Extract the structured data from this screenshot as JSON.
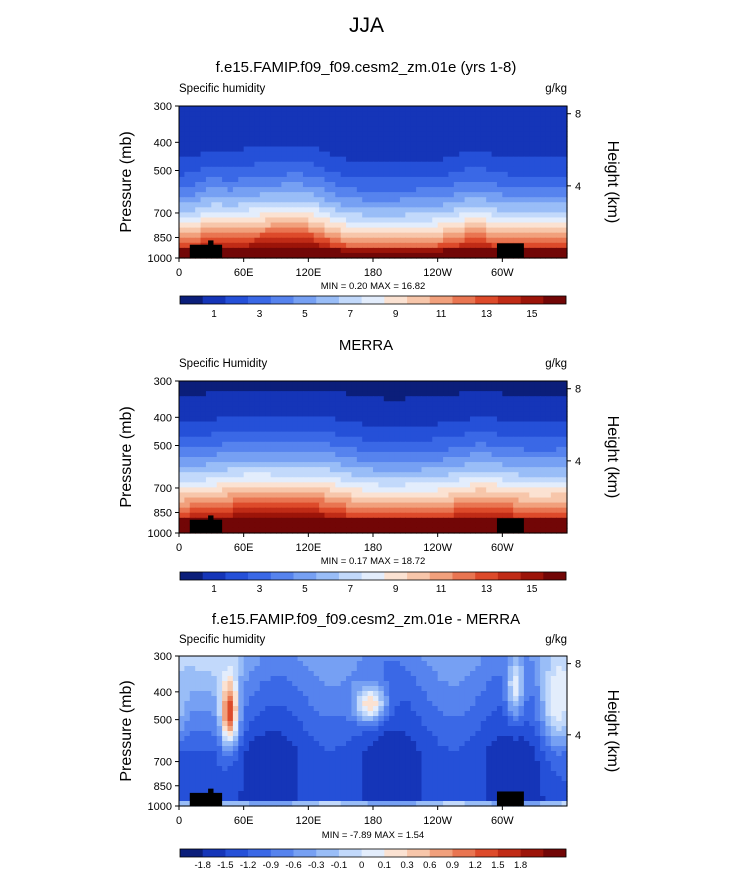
{
  "figure": {
    "title": "JJA"
  },
  "palettes": {
    "sequential": [
      "#0b1e7a",
      "#1535b8",
      "#2550d8",
      "#3a68e6",
      "#5683ee",
      "#76a0f3",
      "#99bdf7",
      "#c2d9fb",
      "#e3edfc",
      "#fbe2d2",
      "#f7c6aa",
      "#f1a07c",
      "#e97551",
      "#dd4a2a",
      "#c02b16",
      "#9c1409",
      "#720606"
    ],
    "diverging": [
      "#0b1e7a",
      "#1535b8",
      "#2550d8",
      "#3a68e6",
      "#5683ee",
      "#76a0f3",
      "#99bdf7",
      "#c2d9fb",
      "#e3edfc",
      "#fbe2d2",
      "#f7c6aa",
      "#f1a07c",
      "#e97551",
      "#dd4a2a",
      "#c02b16",
      "#9c1409",
      "#720606"
    ]
  },
  "chart_data": [
    {
      "type": "heatmap",
      "title": "f.e15.FAMIP.f09_f09.cesm2_zm.01e (yrs 1-8)",
      "field_label": "Specific humidity",
      "units": "g/kg",
      "ylabel": "Pressure (mb)",
      "ylabel_right": "Height (km)",
      "xticks": [
        "0",
        "60E",
        "120E",
        "180",
        "120W",
        "60W"
      ],
      "xtick_lons": [
        0,
        60,
        120,
        180,
        240,
        300
      ],
      "xlim": [
        0,
        360
      ],
      "yticks": [
        "300",
        "400",
        "500",
        "700",
        "850",
        "1000"
      ],
      "ytick_values": [
        300,
        400,
        500,
        700,
        850,
        1000
      ],
      "ylim": [
        1000,
        300
      ],
      "rticks": [
        "8",
        "4"
      ],
      "rtick_values": [
        8,
        4
      ],
      "stats": "MIN =   0.20  MAX =  16.82",
      "min": 0.2,
      "max": 16.82,
      "colorbar_labels": [
        "1",
        "3",
        "5",
        "7",
        "9",
        "11",
        "13",
        "15"
      ],
      "palette": "sequential"
    },
    {
      "type": "heatmap",
      "title": "MERRA",
      "field_label": "Specific Humidity",
      "units": "g/kg",
      "ylabel": "Pressure (mb)",
      "ylabel_right": "Height (km)",
      "xticks": [
        "0",
        "60E",
        "120E",
        "180",
        "120W",
        "60W"
      ],
      "xtick_lons": [
        0,
        60,
        120,
        180,
        240,
        300
      ],
      "xlim": [
        0,
        360
      ],
      "yticks": [
        "300",
        "400",
        "500",
        "700",
        "850",
        "1000"
      ],
      "ytick_values": [
        300,
        400,
        500,
        700,
        850,
        1000
      ],
      "ylim": [
        1000,
        300
      ],
      "rticks": [
        "8",
        "4"
      ],
      "rtick_values": [
        8,
        4
      ],
      "stats": "MIN =   0.17  MAX =  18.72",
      "min": 0.17,
      "max": 18.72,
      "colorbar_labels": [
        "1",
        "3",
        "5",
        "7",
        "9",
        "11",
        "13",
        "15"
      ],
      "palette": "sequential"
    },
    {
      "type": "heatmap",
      "title": "f.e15.FAMIP.f09_f09.cesm2_zm.01e - MERRA",
      "field_label": "Specific humidity",
      "units": "g/kg",
      "ylabel": "Pressure (mb)",
      "ylabel_right": "Height (km)",
      "xticks": [
        "0",
        "60E",
        "120E",
        "180",
        "120W",
        "60W"
      ],
      "xtick_lons": [
        0,
        60,
        120,
        180,
        240,
        300
      ],
      "xlim": [
        0,
        360
      ],
      "yticks": [
        "300",
        "400",
        "500",
        "700",
        "850",
        "1000"
      ],
      "ytick_values": [
        300,
        400,
        500,
        700,
        850,
        1000
      ],
      "ylim": [
        1000,
        300
      ],
      "rticks": [
        "8",
        "4"
      ],
      "rtick_values": [
        8,
        4
      ],
      "stats": "MIN =  -7.89  MAX =   1.54",
      "min": -7.89,
      "max": 1.54,
      "colorbar_labels": [
        "-1.8",
        "-1.5",
        "-1.2",
        "-0.9",
        "-0.6",
        "-0.3",
        "-0.1",
        "0",
        "0.1",
        "0.3",
        "0.6",
        "0.9",
        "1.2",
        "1.5",
        "1.8"
      ],
      "palette": "diverging"
    }
  ]
}
